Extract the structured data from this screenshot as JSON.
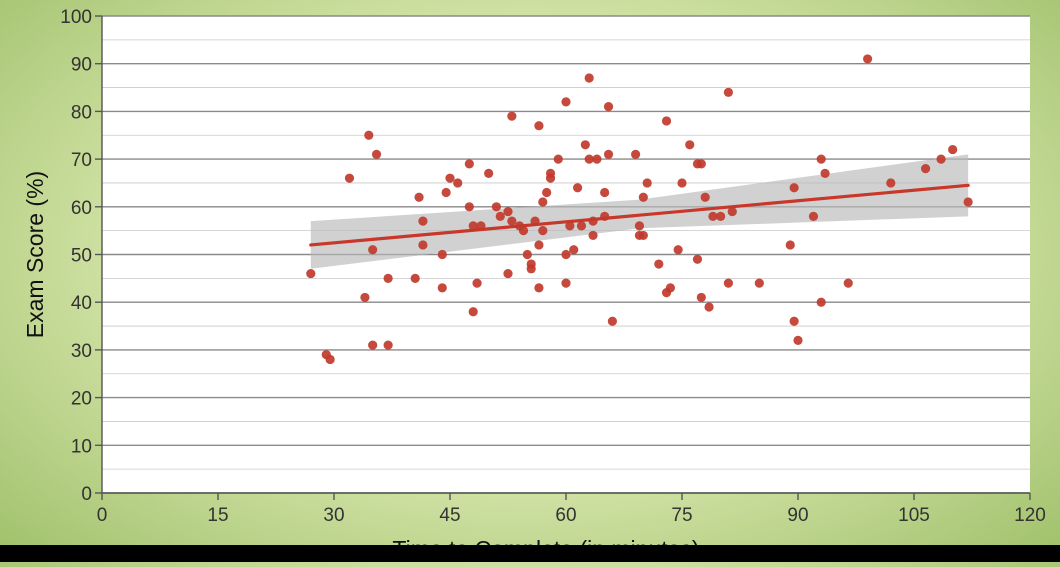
{
  "chart_data": {
    "type": "scatter",
    "xlabel": "Time to Complete (in minutes)",
    "ylabel": "Exam Score (%)",
    "xlim": [
      0,
      120
    ],
    "ylim": [
      0,
      100
    ],
    "xticks": [
      0,
      15,
      30,
      45,
      60,
      75,
      90,
      105,
      120
    ],
    "yticks": [
      0,
      10,
      20,
      30,
      40,
      50,
      60,
      70,
      80,
      90,
      100
    ],
    "minor_grid_step": 5,
    "grid": true,
    "colors": {
      "points": "#c0392b",
      "trend": "#c8372a",
      "band": "#b9b9b9",
      "grid": "#8a8a8a",
      "plot_bg": "#ffffff"
    },
    "points": [
      [
        27,
        46
      ],
      [
        29,
        29
      ],
      [
        29.5,
        28
      ],
      [
        32,
        66
      ],
      [
        34,
        41
      ],
      [
        34.5,
        75
      ],
      [
        35,
        51
      ],
      [
        35,
        31
      ],
      [
        35.5,
        71
      ],
      [
        37,
        45
      ],
      [
        37,
        31
      ],
      [
        40.5,
        45
      ],
      [
        41,
        62
      ],
      [
        41.5,
        57
      ],
      [
        41.5,
        52
      ],
      [
        44,
        50
      ],
      [
        44,
        43
      ],
      [
        44.5,
        63
      ],
      [
        45,
        66
      ],
      [
        46,
        65
      ],
      [
        47.5,
        60
      ],
      [
        47.5,
        69
      ],
      [
        48,
        56
      ],
      [
        48,
        38
      ],
      [
        48.5,
        44
      ],
      [
        49,
        56
      ],
      [
        50,
        67
      ],
      [
        51,
        60
      ],
      [
        51.5,
        58
      ],
      [
        52.5,
        59
      ],
      [
        52.5,
        46
      ],
      [
        53,
        79
      ],
      [
        53,
        57
      ],
      [
        54,
        56
      ],
      [
        54.5,
        55
      ],
      [
        55,
        50
      ],
      [
        55.5,
        48
      ],
      [
        55.5,
        47
      ],
      [
        56,
        57
      ],
      [
        56.5,
        77
      ],
      [
        56.5,
        52
      ],
      [
        56.5,
        43
      ],
      [
        57,
        55
      ],
      [
        57,
        61
      ],
      [
        57.5,
        63
      ],
      [
        58,
        67
      ],
      [
        58,
        66
      ],
      [
        59,
        70
      ],
      [
        60,
        82
      ],
      [
        60,
        50
      ],
      [
        60,
        44
      ],
      [
        60.5,
        56
      ],
      [
        61,
        51
      ],
      [
        61.5,
        64
      ],
      [
        62,
        56
      ],
      [
        62.5,
        73
      ],
      [
        63,
        70
      ],
      [
        63,
        87
      ],
      [
        63.5,
        57
      ],
      [
        63.5,
        54
      ],
      [
        64,
        70
      ],
      [
        65,
        58
      ],
      [
        65,
        63
      ],
      [
        65.5,
        71
      ],
      [
        65.5,
        81
      ],
      [
        66,
        36
      ],
      [
        69,
        71
      ],
      [
        69.5,
        54
      ],
      [
        69.5,
        56
      ],
      [
        70,
        54
      ],
      [
        70,
        62
      ],
      [
        70.5,
        65
      ],
      [
        72,
        48
      ],
      [
        73,
        42
      ],
      [
        73,
        78
      ],
      [
        73.5,
        43
      ],
      [
        74.5,
        51
      ],
      [
        75,
        65
      ],
      [
        76,
        73
      ],
      [
        77,
        69
      ],
      [
        77,
        49
      ],
      [
        77.5,
        69
      ],
      [
        77.5,
        41
      ],
      [
        78,
        62
      ],
      [
        78.5,
        39
      ],
      [
        79,
        58
      ],
      [
        80,
        58
      ],
      [
        81,
        84
      ],
      [
        81,
        44
      ],
      [
        81.5,
        59
      ],
      [
        85,
        44
      ],
      [
        89,
        52
      ],
      [
        89.5,
        36
      ],
      [
        89.5,
        64
      ],
      [
        90,
        32
      ],
      [
        92,
        58
      ],
      [
        93,
        70
      ],
      [
        93,
        40
      ],
      [
        93.5,
        67
      ],
      [
        96.5,
        44
      ],
      [
        99,
        91
      ],
      [
        102,
        65
      ],
      [
        106.5,
        68
      ],
      [
        108.5,
        70
      ],
      [
        110,
        72
      ],
      [
        112,
        61
      ]
    ],
    "trend_line": {
      "x": [
        27,
        112
      ],
      "y": [
        52,
        64.5
      ]
    },
    "confidence_band": {
      "x": [
        27,
        69.5,
        112
      ],
      "upper": [
        57,
        61.5,
        71
      ],
      "lower": [
        47,
        55.5,
        58
      ]
    }
  }
}
